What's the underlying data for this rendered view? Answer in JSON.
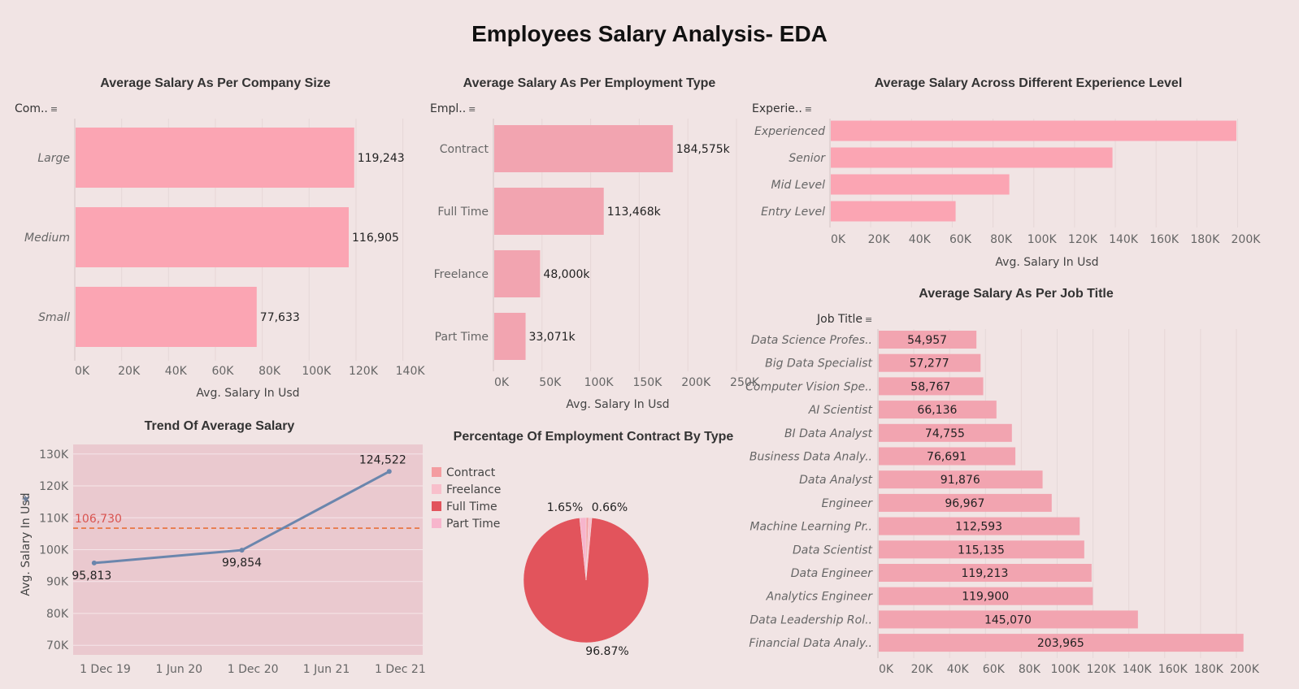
{
  "dashboard_title": "Employees Salary Analysis- EDA",
  "colors": {
    "background": "#f1e4e4",
    "bar_pink": "#fba5b3",
    "bar_pink2": "#f2a4b0",
    "line": "#6b86ad",
    "ref_line": "#e8703a",
    "pie_fulltime": "#e2545c",
    "pie_contract": "#f49da1",
    "pie_freelance": "#f8bfcb",
    "pie_parttime": "#f7b5cc"
  },
  "chart_data": [
    {
      "id": "company_size",
      "type": "bar",
      "orientation": "horizontal",
      "title": "Average Salary As Per Company Size",
      "field_header": "Com..",
      "categories": [
        "Large",
        "Medium",
        "Small"
      ],
      "values": [
        119243,
        116905,
        77633
      ],
      "value_labels": [
        "119,243",
        "116,905",
        "77,633"
      ],
      "xlabel": "Avg. Salary In Usd",
      "xlim": [
        0,
        145000
      ],
      "xticks": [
        0,
        20000,
        40000,
        60000,
        80000,
        100000,
        120000,
        140000
      ],
      "xtick_labels": [
        "0K",
        "20K",
        "40K",
        "60K",
        "80K",
        "100K",
        "120K",
        "140K"
      ],
      "grid": true
    },
    {
      "id": "employment_type",
      "type": "bar",
      "orientation": "horizontal",
      "title": "Average Salary As Per Employment Type",
      "field_header": "Empl..",
      "categories": [
        "Contract",
        "Full Time",
        "Freelance",
        "Part Time"
      ],
      "values": [
        184575,
        113468,
        48000,
        33071
      ],
      "value_labels": [
        "184,575k",
        "113,468k",
        "48,000k",
        "33,071k"
      ],
      "xlabel": "Avg. Salary In Usd",
      "xlim": [
        0,
        250000
      ],
      "xticks": [
        0,
        50000,
        100000,
        150000,
        200000,
        250000
      ],
      "xtick_labels": [
        "0K",
        "50K",
        "100K",
        "150K",
        "200K",
        "250K"
      ],
      "grid": true
    },
    {
      "id": "experience_level",
      "type": "bar",
      "orientation": "horizontal",
      "title": "Average Salary Across Different Experience Level",
      "field_header": "Experie..",
      "categories": [
        "Experienced",
        "Senior",
        "Mid Level",
        "Entry Level"
      ],
      "values": [
        199392,
        138617,
        87996,
        61643
      ],
      "xlabel": "Avg. Salary In Usd",
      "xlim": [
        0,
        205000
      ],
      "xticks": [
        0,
        20000,
        40000,
        60000,
        80000,
        100000,
        120000,
        140000,
        160000,
        180000,
        200000
      ],
      "xtick_labels": [
        "0K",
        "20K",
        "40K",
        "60K",
        "80K",
        "100K",
        "120K",
        "140K",
        "160K",
        "180K",
        "200K"
      ],
      "grid": true
    },
    {
      "id": "job_title",
      "type": "bar",
      "orientation": "horizontal",
      "title": "Average Salary As Per Job Title",
      "field_header": "Job Title",
      "categories": [
        "Data Science Profes..",
        "Big Data Specialist",
        "Computer Vision Spe..",
        "AI Scientist",
        "BI Data Analyst",
        "Business Data Analy..",
        "Data Analyst",
        "Engineer",
        "Machine Learning Pr..",
        "Data Scientist",
        "Data Engineer",
        "Analytics Engineer",
        "Data Leadership Rol..",
        "Financial Data Analy.."
      ],
      "values": [
        54957,
        57277,
        58767,
        66136,
        74755,
        76691,
        91876,
        96967,
        112593,
        115135,
        119213,
        119900,
        145070,
        203965
      ],
      "value_labels": [
        "54,957",
        "57,277",
        "58,767",
        "66,136",
        "74,755",
        "76,691",
        "91,876",
        "96,967",
        "112,593",
        "115,135",
        "119,213",
        "119,900",
        "145,070",
        "203,965"
      ],
      "xlim": [
        0,
        210000
      ],
      "xticks": [
        0,
        20000,
        40000,
        60000,
        80000,
        100000,
        120000,
        140000,
        160000,
        180000,
        200000
      ],
      "xtick_labels": [
        "0K",
        "20K",
        "40K",
        "60K",
        "80K",
        "100K",
        "120K",
        "140K",
        "160K",
        "180K",
        "200K"
      ],
      "grid": true
    },
    {
      "id": "salary_trend",
      "type": "line",
      "title": "Trend Of Average Salary",
      "ylabel": "Avg. Salary In Usd",
      "x": [
        "2020-01-01",
        "2021-01-01",
        "2022-01-01"
      ],
      "values": [
        95813,
        99854,
        124522
      ],
      "value_labels": [
        "95,813",
        "99,854",
        "124,522"
      ],
      "reference_line": {
        "value": 106730,
        "label": "106,730",
        "style": "dashed"
      },
      "xlim": [
        "2019-11-10",
        "2022-03-25"
      ],
      "xticks": [
        "2019-12-01",
        "2020-06-01",
        "2020-12-01",
        "2021-06-01",
        "2021-12-01"
      ],
      "xtick_labels": [
        "1 Dec 19",
        "1 Jun 20",
        "1 Dec 20",
        "1 Jun 21",
        "1 Dec 21"
      ],
      "ylim": [
        67000,
        133000
      ],
      "yticks": [
        70000,
        80000,
        90000,
        100000,
        110000,
        120000,
        130000
      ],
      "ytick_labels": [
        "70K",
        "80K",
        "90K",
        "100K",
        "110K",
        "120K",
        "130K"
      ],
      "grid": true
    },
    {
      "id": "contract_pct",
      "type": "pie",
      "title": "Percentage Of Employment Contract By Type",
      "legend": [
        "Contract",
        "Freelance",
        "Full Time",
        "Part Time"
      ],
      "legend_position": "top-left",
      "slices": [
        {
          "name": "Full Time",
          "value": 96.87,
          "label": "96.87%"
        },
        {
          "name": "Part Time",
          "value": 1.65,
          "label": "1.65%"
        },
        {
          "name": "Contract",
          "value": 0.66,
          "label": "0.66%"
        },
        {
          "name": "Freelance",
          "value": 0.82,
          "label": ""
        }
      ]
    }
  ]
}
